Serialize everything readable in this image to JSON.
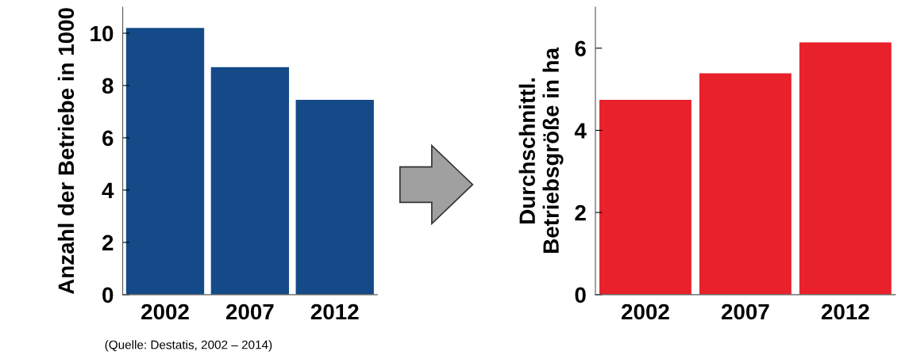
{
  "chart_data": [
    {
      "type": "bar",
      "ylabel": "Anzahl der Betriebe in 1000",
      "categories": [
        "2002",
        "2007",
        "2012"
      ],
      "values": [
        10.2,
        8.7,
        7.45
      ],
      "color": "#134a87",
      "ylim": [
        0,
        11
      ],
      "yticks": [
        0,
        2,
        4,
        6,
        8,
        10
      ],
      "grid": false,
      "legend": false,
      "annotations": [
        "(Quelle: Destatis, 2002 – 2014)"
      ]
    },
    {
      "type": "bar",
      "ylabel": "Durchschnittl.\nBetriebsgröße in ha",
      "categories": [
        "2002",
        "2007",
        "2012"
      ],
      "values": [
        4.74,
        5.39,
        6.14
      ],
      "color": "#e8212b",
      "ylim": [
        0,
        7
      ],
      "yticks": [
        0,
        2,
        4,
        6
      ],
      "grid": false,
      "legend": false
    }
  ]
}
